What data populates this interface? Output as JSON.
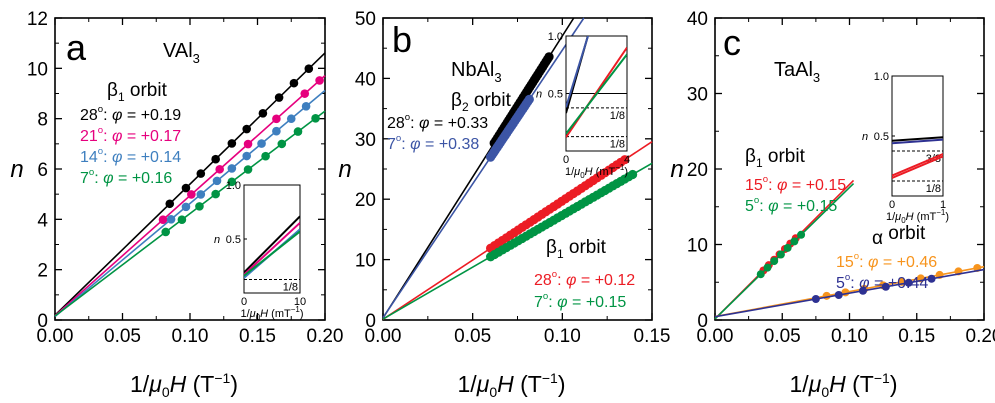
{
  "figure": {
    "xlabel_prefix": "1/",
    "xlabel_mu": "μ",
    "xlabel_sub": "0",
    "xlabel_H": "H",
    "xlabel_unit": " (T",
    "xlabel_exp": "−1",
    "xlabel_close": ")",
    "ylabel": "n",
    "inset_xlabel_unit": " (mT",
    "phi_symbol": "φ",
    "degree": "o"
  },
  "chart_data": [
    {
      "panel": "a",
      "compound_main": "VAl",
      "compound_sub": "3",
      "type": "scatter",
      "orbit_main": "β",
      "orbit_sub": "1",
      "orbit_word": "orbit",
      "xlim": [
        0,
        0.2
      ],
      "ylim": [
        0,
        12
      ],
      "xticks": [
        "0.00",
        "0.05",
        "0.10",
        "0.15",
        "0.20"
      ],
      "yticks": [
        "0",
        "2",
        "4",
        "6",
        "8",
        "10",
        "12"
      ],
      "xtick_values": [
        0,
        0.05,
        0.1,
        0.15,
        0.2
      ],
      "ytick_values": [
        0,
        2,
        4,
        6,
        8,
        10,
        12
      ],
      "series": [
        {
          "angle": "28",
          "phi": "+0.19",
          "color": "#000000",
          "slope": 52.1,
          "intercept": 0.19,
          "x": [
            0.085,
            0.097,
            0.108,
            0.119,
            0.131,
            0.142,
            0.154,
            0.166,
            0.177,
            0.188
          ]
        },
        {
          "angle": "21",
          "phi": "+0.17",
          "color": "#e6007e",
          "slope": 47.7,
          "intercept": 0.17,
          "x": [
            0.08,
            0.101,
            0.122,
            0.143,
            0.164,
            0.185,
            0.196
          ]
        },
        {
          "angle": "14",
          "phi": "+0.14",
          "color": "#3e7fbf",
          "slope": 44.9,
          "intercept": 0.14,
          "x": [
            0.086,
            0.097,
            0.108,
            0.12,
            0.131,
            0.142,
            0.153,
            0.164,
            0.175,
            0.186
          ]
        },
        {
          "angle": "7",
          "phi": "+0.16",
          "color": "#009444",
          "slope": 40.7,
          "intercept": 0.16,
          "x": [
            0.082,
            0.094,
            0.107,
            0.119,
            0.131,
            0.143,
            0.156,
            0.168,
            0.18,
            0.193
          ]
        }
      ],
      "inset": {
        "xlim": [
          0,
          10
        ],
        "ylim": [
          0,
          1
        ],
        "xticks": [
          "0",
          "10"
        ],
        "xtick_values": [
          0,
          10
        ],
        "yticks": [
          "0.5",
          "1.0"
        ],
        "ytick_values": [
          0.5,
          1.0
        ],
        "dashed": [
          0.125
        ],
        "dashed_labels": [
          "1/8"
        ],
        "lines": [
          {
            "color": "#000000",
            "y0": 0.19,
            "y1": 0.71
          },
          {
            "color": "#e6007e",
            "y0": 0.17,
            "y1": 0.65
          },
          {
            "color": "#3e7fbf",
            "y0": 0.14,
            "y1": 0.59
          },
          {
            "color": "#009444",
            "y0": 0.16,
            "y1": 0.57
          }
        ]
      }
    },
    {
      "panel": "b",
      "compound_main": "NbAl",
      "compound_sub": "3",
      "type": "scatter",
      "xlim": [
        0,
        0.15
      ],
      "ylim": [
        0,
        50
      ],
      "xticks": [
        "0.00",
        "0.05",
        "0.10",
        "0.15"
      ],
      "yticks": [
        "0",
        "10",
        "20",
        "30",
        "40",
        "50"
      ],
      "xtick_values": [
        0,
        0.05,
        0.1,
        0.15
      ],
      "ytick_values": [
        0,
        10,
        20,
        30,
        40,
        50
      ],
      "groups": [
        {
          "orbit_main": "β",
          "orbit_sub": "2",
          "orbit_word": "orbit",
          "series": [
            {
              "angle": "28",
              "phi": "+0.33",
              "color": "#000000",
              "slope": 467,
              "intercept": 0.33,
              "x_start": 0.062,
              "x_end": 0.093,
              "step": 0.0009
            },
            {
              "angle": "7",
              "phi": "+0.38",
              "color": "#3c55a5",
              "slope": 443,
              "intercept": 0.38,
              "x_start": 0.06,
              "x_end": 0.082,
              "step": 0.0009
            }
          ]
        },
        {
          "orbit_main": "β",
          "orbit_sub": "1",
          "orbit_word": "orbit",
          "series": [
            {
              "angle": "28",
              "phi": "+0.12",
              "color": "#ec1c24",
              "slope": 196,
              "intercept": 0.12,
              "x_start": 0.06,
              "x_end": 0.136,
              "step": 0.0022
            },
            {
              "angle": "7",
              "phi": "+0.15",
              "color": "#009444",
              "slope": 172,
              "intercept": 0.15,
              "x_start": 0.06,
              "x_end": 0.141,
              "step": 0.0022
            }
          ]
        }
      ],
      "inset": {
        "xlim": [
          0,
          4
        ],
        "ylim": [
          0,
          1
        ],
        "xticks": [
          "0",
          "4"
        ],
        "xtick_values": [
          0,
          4
        ],
        "yticks": [
          "0.5",
          "1.0"
        ],
        "ytick_values": [
          0.5,
          1.0
        ],
        "dashed": [
          0.375,
          0.125
        ],
        "dashed_labels": [
          "1/8",
          "1/8"
        ],
        "solid": [
          0.5
        ],
        "lines": [
          {
            "color": "#000000",
            "y0": 0.33,
            "y1": 2.2
          },
          {
            "color": "#3c55a5",
            "y0": 0.38,
            "y1": 2.1
          },
          {
            "color": "#ec1c24",
            "y0": 0.12,
            "y1": 0.9
          },
          {
            "color": "#009444",
            "y0": 0.15,
            "y1": 0.84
          }
        ]
      }
    },
    {
      "panel": "c",
      "compound_main": "TaAl",
      "compound_sub": "3",
      "type": "scatter",
      "xlim": [
        0,
        0.2
      ],
      "ylim": [
        0,
        40
      ],
      "xticks": [
        "0.00",
        "0.05",
        "0.10",
        "0.15",
        "0.20"
      ],
      "yticks": [
        "0",
        "10",
        "20",
        "30",
        "40"
      ],
      "xtick_values": [
        0,
        0.05,
        0.1,
        0.15,
        0.2
      ],
      "ytick_values": [
        0,
        10,
        20,
        30,
        40
      ],
      "groups": [
        {
          "orbit_main": "β",
          "orbit_sub": "1",
          "orbit_word": "orbit",
          "series": [
            {
              "angle": "15",
              "phi": "+0.15",
              "color": "#ec1c24",
              "slope": 178,
              "intercept": 0.15,
              "x_end": 0.103,
              "x": [
                0.036,
                0.04,
                0.044,
                0.048,
                0.052,
                0.056,
                0.06
              ]
            },
            {
              "angle": "5",
              "phi": "+0.15",
              "color": "#009444",
              "slope": 174,
              "intercept": 0.15,
              "x_end": 0.103,
              "x": [
                0.034,
                0.039,
                0.044,
                0.049,
                0.054,
                0.059,
                0.064
              ]
            }
          ]
        },
        {
          "orbit_main": "α",
          "orbit_sub": "",
          "orbit_word": "orbit",
          "series": [
            {
              "angle": "15",
              "phi": "+0.46",
              "color": "#f7941d",
              "slope": 33.0,
              "intercept": 0.46,
              "x_end": 0.2,
              "x": [
                0.083,
                0.097,
                0.111,
                0.125,
                0.139,
                0.153,
                0.167,
                0.181,
                0.195
              ]
            },
            {
              "angle": "5",
              "phi": "+0.44",
              "color": "#2e3192",
              "slope": 31.2,
              "intercept": 0.44,
              "x_end": 0.2,
              "x": [
                0.075,
                0.092,
                0.11,
                0.127,
                0.144,
                0.161
              ]
            }
          ]
        }
      ],
      "inset": {
        "xlim": [
          0,
          1
        ],
        "ylim": [
          0,
          1
        ],
        "xticks": [
          "0",
          "1"
        ],
        "xtick_values": [
          0,
          1
        ],
        "yticks": [
          "0.5",
          "1.0"
        ],
        "ytick_values": [
          0.5,
          1.0
        ],
        "dashed": [
          0.375,
          0.125
        ],
        "dashed_labels": [
          "3/8",
          "1/8"
        ],
        "lines": [
          {
            "color": "#000000",
            "y0": 0.46,
            "y1": 0.49
          },
          {
            "color": "#2e3192",
            "y0": 0.44,
            "y1": 0.47
          },
          {
            "color": "#ec1c24",
            "y0": 0.15,
            "y1": 0.33
          },
          {
            "color": "#ec1c24",
            "y0": 0.17,
            "y1": 0.35
          }
        ]
      }
    }
  ]
}
